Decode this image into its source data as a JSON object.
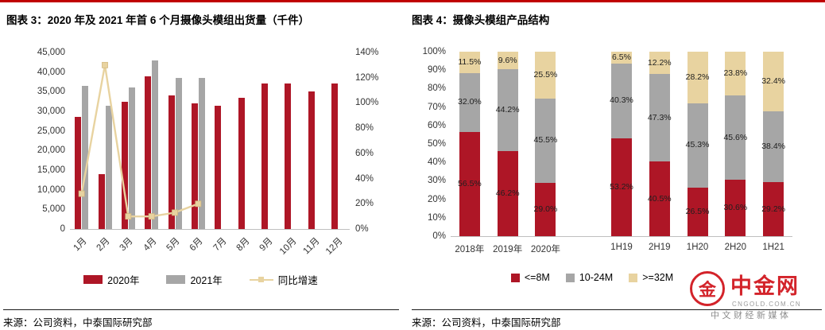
{
  "colors": {
    "red": "#ae1626",
    "gray": "#a6a6a6",
    "beige": "#e8d3a0",
    "topline": "#c00000",
    "logo_red": "#d3232a",
    "axis_text": "#333333",
    "axis_line": "#bfbfbf"
  },
  "left_panel": {
    "title": "图表 3：2020 年及 2021 年首 6 个月摄像头模组出货量（千件）",
    "source": "来源：公司资料，中泰国际研究部"
  },
  "right_panel": {
    "title": "图表 4：摄像头模组产品结构",
    "source": "来源：公司资料，中泰国际研究部"
  },
  "logo": {
    "name": "中金网",
    "domain": "CNGOLD.COM.CN",
    "tagline": "中文财经新媒体"
  },
  "chart_data": [
    {
      "type": "bar",
      "title": "2020年及2021年首6个月摄像头模组出货量（千件）",
      "categories": [
        "1月",
        "2月",
        "3月",
        "4月",
        "5月",
        "6月",
        "7月",
        "8月",
        "9月",
        "10月",
        "11月",
        "12月"
      ],
      "series": [
        {
          "name": "2020年",
          "type": "bar",
          "color": "#ae1626",
          "values": [
            28500,
            14000,
            32500,
            39000,
            34000,
            32000,
            31500,
            33500,
            37000,
            37000,
            35000,
            37000
          ]
        },
        {
          "name": "2021年",
          "type": "bar",
          "color": "#a6a6a6",
          "values": [
            36500,
            31500,
            36000,
            43000,
            38500,
            38500,
            null,
            null,
            null,
            null,
            null,
            null
          ]
        },
        {
          "name": "同比增速",
          "type": "line",
          "axis": "right",
          "color": "#e8d3a0",
          "values": [
            28,
            130,
            10,
            10,
            13,
            20
          ]
        }
      ],
      "left_axis": {
        "min": 0,
        "max": 45000,
        "step": 5000
      },
      "right_axis": {
        "min": 0,
        "max": 140,
        "step": 20,
        "format": "percent"
      },
      "grid": false,
      "legend_position": "bottom"
    },
    {
      "type": "stacked-bar-100",
      "title": "摄像头模组产品结构",
      "categories": [
        "2018年",
        "2019年",
        "2020年",
        "1H19",
        "2H19",
        "1H20",
        "2H20",
        "1H21"
      ],
      "group_break_after_index": 2,
      "series": [
        {
          "name": "<=8M",
          "color": "#ae1626",
          "values": [
            56.5,
            46.2,
            29.0,
            53.2,
            40.5,
            26.5,
            30.6,
            29.2
          ]
        },
        {
          "name": "10-24M",
          "color": "#a6a6a6",
          "values": [
            32.0,
            44.2,
            45.5,
            40.3,
            47.3,
            45.3,
            45.6,
            38.4
          ]
        },
        {
          "name": ">=32M",
          "color": "#e8d3a0",
          "values": [
            11.5,
            9.6,
            25.5,
            6.5,
            12.2,
            28.2,
            23.8,
            32.4
          ]
        }
      ],
      "y_axis": {
        "min": 0,
        "max": 100,
        "step": 10,
        "format": "percent"
      },
      "grid": false,
      "legend_position": "bottom"
    }
  ]
}
